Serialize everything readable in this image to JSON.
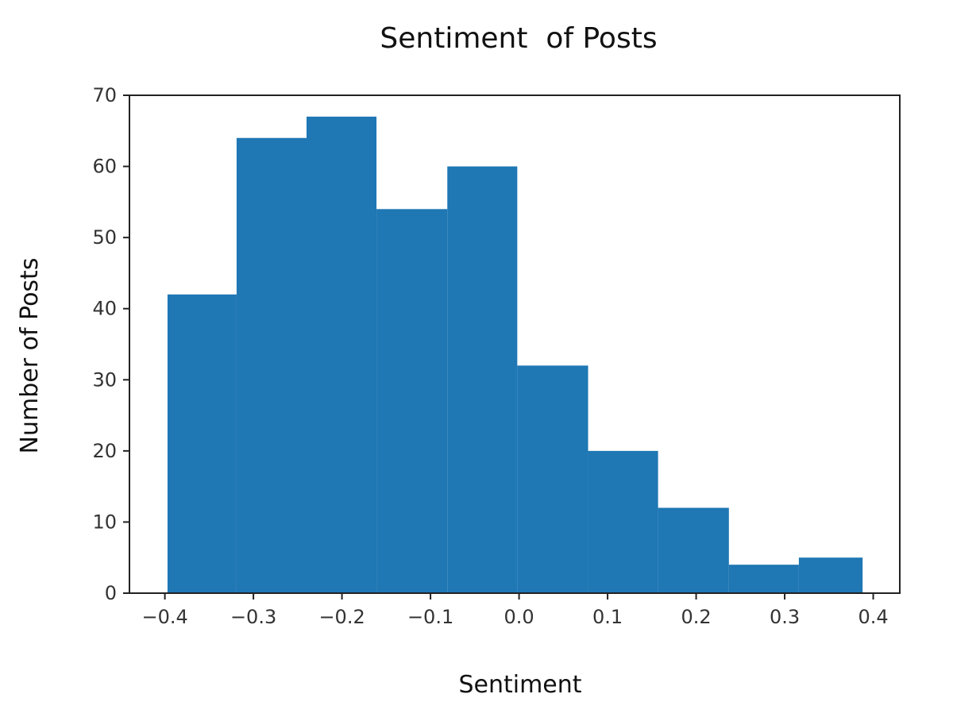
{
  "chart_data": {
    "type": "bar",
    "title": "Sentiment  of Posts",
    "xlabel": "Sentiment",
    "ylabel": "Number of Posts",
    "bin_edges": [
      -0.397,
      -0.319,
      -0.24,
      -0.161,
      -0.081,
      -0.002,
      0.078,
      0.157,
      0.237,
      0.316,
      0.388
    ],
    "values": [
      42,
      64,
      67,
      54,
      60,
      32,
      20,
      12,
      4,
      5
    ],
    "xlim": [
      -0.44,
      0.43
    ],
    "ylim": [
      0,
      70
    ],
    "xticks": [
      -0.4,
      -0.3,
      -0.2,
      -0.1,
      0.0,
      0.1,
      0.2,
      0.3,
      0.4
    ],
    "xtick_labels": [
      "−0.4",
      "−0.3",
      "−0.2",
      "−0.1",
      "0.0",
      "0.1",
      "0.2",
      "0.3",
      "0.4"
    ],
    "yticks": [
      0,
      10,
      20,
      30,
      40,
      50,
      60,
      70
    ],
    "ytick_labels": [
      "0",
      "10",
      "20",
      "30",
      "40",
      "50",
      "60",
      "70"
    ],
    "grid": false,
    "bar_color": "#1f77b4"
  }
}
